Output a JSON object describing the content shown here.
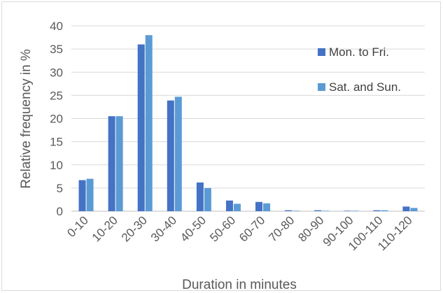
{
  "chart_data": {
    "type": "bar",
    "title": "",
    "xlabel": "Duration in minutes",
    "ylabel": "Relative frequency in %",
    "ylim": [
      0,
      40
    ],
    "yticks": [
      0,
      5,
      10,
      15,
      20,
      25,
      30,
      35,
      40
    ],
    "grid": true,
    "legend_position": "right",
    "categories": [
      "0-10",
      "10-20",
      "20-30",
      "30-40",
      "40-50",
      "50-60",
      "60-70",
      "70-80",
      "80-90",
      "90-100",
      "100-110",
      "110-120"
    ],
    "series": [
      {
        "name": "Mon. to Fri.",
        "color": "#4472c4",
        "values": [
          6.7,
          20.5,
          36.0,
          23.9,
          6.2,
          2.3,
          2.0,
          0.2,
          0.2,
          0.1,
          0.2,
          1.0
        ]
      },
      {
        "name": "Sat. and Sun.",
        "color": "#5b9bd5",
        "values": [
          7.0,
          20.5,
          38.0,
          24.7,
          5.0,
          1.6,
          1.7,
          0.1,
          0.1,
          0.1,
          0.2,
          0.7
        ]
      }
    ]
  }
}
